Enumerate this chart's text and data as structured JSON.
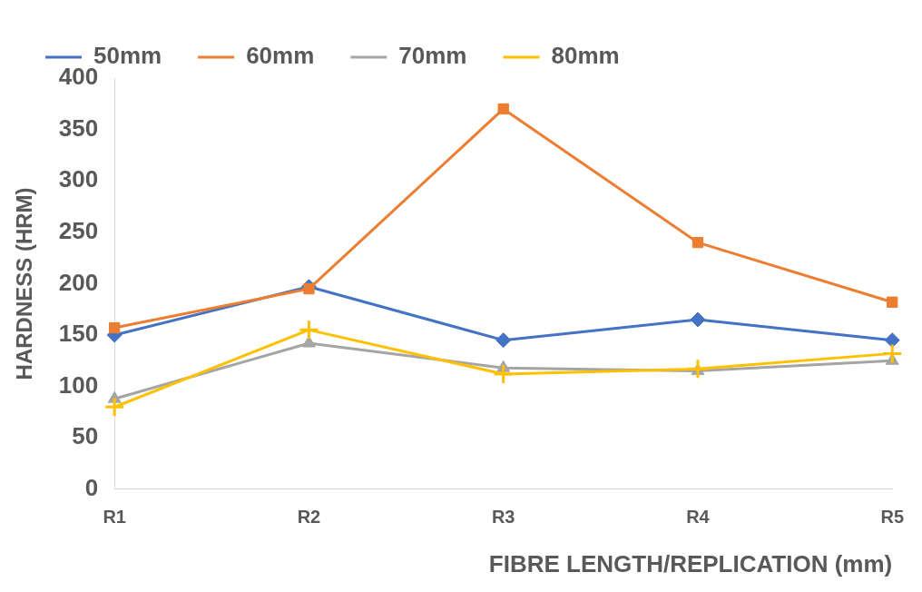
{
  "chart_data": {
    "type": "line",
    "xlabel": "FIBRE LENGTH/REPLICATION (mm)",
    "ylabel": "HARDNESS (HRM)",
    "categories": [
      "R1",
      "R2",
      "R3",
      "R4",
      "R5"
    ],
    "series": [
      {
        "name": "50mm",
        "color": "#4472c4",
        "marker": "diamond",
        "values": [
          150,
          197,
          145,
          165,
          145
        ]
      },
      {
        "name": "60mm",
        "color": "#ed7d31",
        "marker": "square",
        "values": [
          157,
          195,
          370,
          240,
          182
        ]
      },
      {
        "name": "70mm",
        "color": "#a5a5a5",
        "marker": "triangle",
        "values": [
          88,
          142,
          118,
          115,
          125
        ]
      },
      {
        "name": "80mm",
        "color": "#ffc000",
        "marker": "cross",
        "values": [
          80,
          155,
          112,
          117,
          132
        ]
      }
    ],
    "ylim": [
      0,
      400
    ],
    "yticks": [
      0,
      50,
      100,
      150,
      200,
      250,
      300,
      350,
      400
    ],
    "grid": false,
    "legend": "top",
    "line_style": "solid"
  }
}
